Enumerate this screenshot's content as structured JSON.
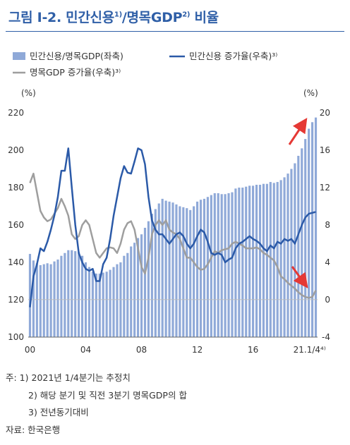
{
  "title": {
    "prefix": "그림 Ⅰ-2. 민간신용",
    "sup1": "1)",
    "middle": "/명목GDP",
    "sup2": "2)",
    "suffix": " 비율"
  },
  "notes": [
    "주: 1) 2021년 1/4분기는 추정치",
    "2) 해당 분기 및 직전 3분기 명목GDP의 합",
    "3) 전년동기대비",
    "자료: 한국은행"
  ],
  "colors": {
    "bar": "#8fa9d8",
    "credit_line": "#2b5aa8",
    "gdp_line": "#9e9e9e",
    "arrow": "#e53935",
    "title": "#2f5fa7"
  },
  "chart_data": {
    "type": "bar+line",
    "x_tick_labels": [
      "00",
      "04",
      "08",
      "12",
      "16",
      "21.1/4⁴⁾"
    ],
    "left_axis": {
      "unit": "(%)",
      "range": [
        100,
        220
      ],
      "ticks": [
        100,
        120,
        140,
        160,
        180,
        200,
        220
      ]
    },
    "right_axis": {
      "unit": "(%)",
      "range": [
        -4,
        20
      ],
      "ticks": [
        -4,
        0,
        4,
        8,
        12,
        16,
        20
      ]
    },
    "legend": [
      {
        "label": "민간신용/명목GDP(좌축)",
        "kind": "bar"
      },
      {
        "label": "민간신용 증가율(우축)³⁾",
        "kind": "line"
      },
      {
        "label": "명목GDP 증가율(우축)³⁾",
        "kind": "line"
      }
    ],
    "quarters_start": "2000Q1",
    "series": [
      {
        "name": "민간신용/명목GDP(좌축)",
        "axis": "left",
        "type": "bar",
        "values": [
          144.5,
          141.0,
          139.5,
          138.5,
          139.0,
          139.5,
          139.0,
          140.5,
          141.5,
          143.5,
          145.0,
          146.5,
          146.5,
          146.0,
          145.5,
          143.5,
          140.0,
          137.5,
          135.0,
          134.0,
          134.0,
          134.5,
          135.0,
          136.0,
          137.5,
          139.0,
          140.0,
          143.5,
          145.0,
          148.5,
          150.5,
          153.0,
          155.0,
          158.5,
          162.0,
          166.0,
          168.5,
          171.5,
          174.0,
          173.0,
          172.5,
          172.0,
          171.0,
          170.0,
          169.5,
          169.0,
          168.0,
          170.0,
          172.5,
          173.5,
          174.0,
          175.0,
          176.0,
          177.0,
          177.0,
          176.5,
          176.5,
          177.0,
          177.5,
          179.5,
          180.0,
          180.0,
          180.5,
          181.0,
          181.0,
          181.5,
          181.5,
          182.0,
          182.0,
          183.0,
          182.5,
          183.0,
          184.0,
          185.5,
          187.5,
          190.0,
          193.0,
          197.0,
          201.0,
          206.0,
          211.5,
          215.0,
          217.5
        ]
      },
      {
        "name": "민간신용 증가율(우축)³⁾",
        "axis": "right",
        "type": "line",
        "values": [
          -0.8,
          2.5,
          3.8,
          5.5,
          5.2,
          6.2,
          7.5,
          9.0,
          11.0,
          13.8,
          13.8,
          16.2,
          12.0,
          8.0,
          5.0,
          4.0,
          3.3,
          3.1,
          3.3,
          2.0,
          2.0,
          3.8,
          4.5,
          6.5,
          9.0,
          11.0,
          13.0,
          14.3,
          13.6,
          13.5,
          14.8,
          16.2,
          16.0,
          14.5,
          11.0,
          8.5,
          7.5,
          7.0,
          7.0,
          6.5,
          6.0,
          6.5,
          7.0,
          7.2,
          6.8,
          6.0,
          5.5,
          6.0,
          6.8,
          7.5,
          7.2,
          6.2,
          5.0,
          4.8,
          5.0,
          4.8,
          4.0,
          4.3,
          4.5,
          5.5,
          6.0,
          6.2,
          6.5,
          6.8,
          6.5,
          6.3,
          6.0,
          5.5,
          5.2,
          5.8,
          5.5,
          6.2,
          6.0,
          6.5,
          6.3,
          6.5,
          6.0,
          7.0,
          8.0,
          8.8,
          9.2,
          9.3,
          9.4
        ]
      },
      {
        "name": "명목GDP 증가율(우축)³⁾",
        "axis": "right",
        "type": "line",
        "values": [
          12.5,
          13.5,
          11.5,
          9.5,
          8.8,
          8.4,
          8.6,
          9.2,
          9.8,
          10.8,
          10.0,
          9.0,
          7.0,
          6.5,
          6.8,
          8.0,
          8.5,
          8.0,
          6.5,
          5.0,
          4.5,
          5.0,
          5.5,
          5.6,
          5.5,
          5.0,
          6.0,
          7.5,
          8.2,
          8.4,
          7.5,
          5.5,
          3.5,
          2.8,
          4.5,
          7.0,
          8.0,
          8.5,
          8.0,
          8.5,
          7.5,
          7.2,
          7.0,
          6.5,
          5.5,
          4.5,
          4.5,
          4.0,
          3.5,
          3.2,
          3.3,
          3.8,
          4.5,
          5.2,
          5.0,
          5.3,
          5.4,
          5.5,
          6.0,
          6.2,
          6.0,
          5.8,
          5.5,
          5.5,
          5.5,
          5.6,
          5.4,
          5.0,
          4.8,
          4.5,
          4.2,
          3.5,
          2.5,
          2.2,
          1.8,
          1.5,
          1.2,
          0.8,
          0.5,
          0.3,
          0.2,
          0.3,
          1.0
        ]
      }
    ]
  }
}
